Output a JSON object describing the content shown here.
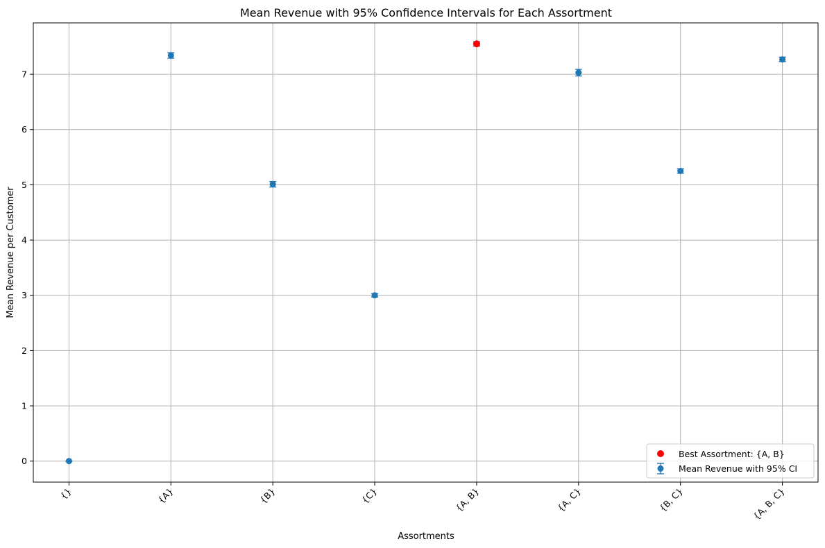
{
  "chart_data": {
    "type": "scatter",
    "title": "Mean Revenue with 95% Confidence Intervals for Each Assortment",
    "xlabel": "Assortments",
    "ylabel": "Mean Revenue per Customer",
    "categories": [
      "{}",
      "{A}",
      "{B}",
      "{C}",
      "{A, B}",
      "{A, C}",
      "{B, C}",
      "{A, B, C}"
    ],
    "ylim": [
      -0.38,
      7.93
    ],
    "yticks": [
      0,
      1,
      2,
      3,
      4,
      5,
      6,
      7
    ],
    "ytick_labels": [
      "0",
      "1",
      "2",
      "3",
      "4",
      "5",
      "6",
      "7"
    ],
    "grid": true,
    "legend_position": "lower-right",
    "series": [
      {
        "name": "Mean Revenue with 95% CI",
        "type": "errorbar",
        "color": "#1f77b4",
        "values": [
          0.0,
          7.34,
          5.01,
          3.0,
          7.55,
          7.03,
          5.25,
          7.27
        ],
        "ci_lower": [
          0.0,
          7.29,
          4.96,
          2.97,
          7.51,
          6.97,
          5.21,
          7.23
        ],
        "ci_upper": [
          0.0,
          7.39,
          5.06,
          3.03,
          7.59,
          7.09,
          5.29,
          7.31
        ]
      },
      {
        "name": "Best Assortment: {A, B}",
        "type": "scatter",
        "color": "#ff0000",
        "points": [
          {
            "category": "{A, B}",
            "value": 7.55
          }
        ]
      }
    ]
  }
}
